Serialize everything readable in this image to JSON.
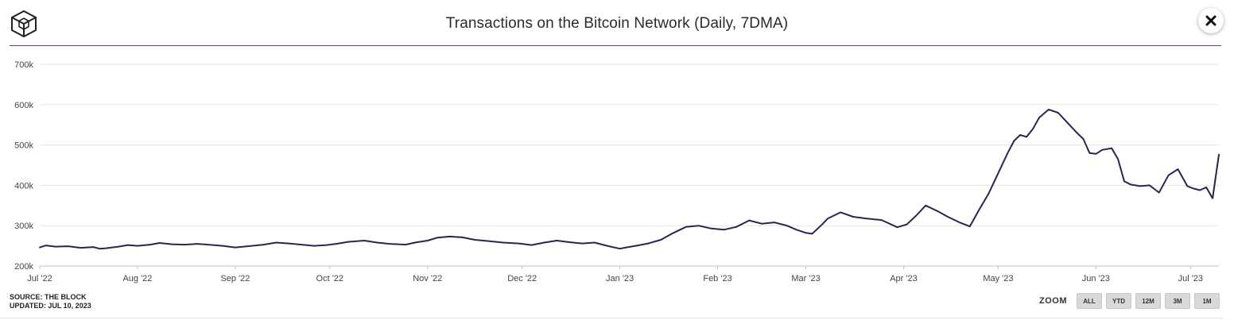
{
  "header": {
    "title": "Transactions on the Bitcoin Network (Daily, 7DMA)",
    "logo_icon": "cube-logo-icon",
    "close_icon": "close-icon"
  },
  "footer": {
    "source": "SOURCE: THE BLOCK",
    "updated": "UPDATED: JUL 10, 2023"
  },
  "zoom": {
    "label": "ZOOM",
    "buttons": [
      "ALL",
      "YTD",
      "12M",
      "3M",
      "1M"
    ]
  },
  "colors": {
    "line": "#2a2550",
    "divider": "#8a2d7a",
    "grid": "#e6e6e6"
  },
  "chart_data": {
    "type": "line",
    "title": "Transactions on the Bitcoin Network (Daily, 7DMA)",
    "xlabel": "",
    "ylabel": "",
    "ylim": [
      200000,
      700000
    ],
    "yticks": [
      200000,
      300000,
      400000,
      500000,
      600000,
      700000
    ],
    "ytick_labels": [
      "200k",
      "300k",
      "400k",
      "500k",
      "600k",
      "700k"
    ],
    "xlim": [
      "2022-07-01",
      "2023-07-10"
    ],
    "xticks": [
      "2022-07-01",
      "2022-08-01",
      "2022-09-01",
      "2022-10-01",
      "2022-11-01",
      "2022-12-01",
      "2023-01-01",
      "2023-02-01",
      "2023-03-01",
      "2023-04-01",
      "2023-05-01",
      "2023-06-01",
      "2023-07-01"
    ],
    "xtick_labels": [
      "Jul '22",
      "Aug '22",
      "Sep '22",
      "Oct '22",
      "Nov '22",
      "Dec '22",
      "Jan '23",
      "Feb '23",
      "Mar '23",
      "Apr '23",
      "May '23",
      "Jun '23",
      "Jul '23"
    ],
    "grid": true,
    "legend": "none",
    "series": [
      {
        "x": [
          "2022-07-01",
          "2022-07-03",
          "2022-07-06",
          "2022-07-10",
          "2022-07-14",
          "2022-07-18",
          "2022-07-20",
          "2022-07-22",
          "2022-07-26",
          "2022-07-29",
          "2022-08-01",
          "2022-08-05",
          "2022-08-08",
          "2022-08-12",
          "2022-08-16",
          "2022-08-20",
          "2022-08-25",
          "2022-08-28",
          "2022-09-01",
          "2022-09-05",
          "2022-09-10",
          "2022-09-14",
          "2022-09-18",
          "2022-09-22",
          "2022-09-26",
          "2022-09-30",
          "2022-10-03",
          "2022-10-07",
          "2022-10-12",
          "2022-10-16",
          "2022-10-20",
          "2022-10-25",
          "2022-10-28",
          "2022-11-01",
          "2022-11-04",
          "2022-11-08",
          "2022-11-12",
          "2022-11-16",
          "2022-11-20",
          "2022-11-25",
          "2022-11-30",
          "2022-12-04",
          "2022-12-08",
          "2022-12-12",
          "2022-12-16",
          "2022-12-20",
          "2022-12-24",
          "2022-12-28",
          "2023-01-01",
          "2023-01-03",
          "2023-01-06",
          "2023-01-10",
          "2023-01-14",
          "2023-01-18",
          "2023-01-22",
          "2023-01-26",
          "2023-01-30",
          "2023-02-03",
          "2023-02-07",
          "2023-02-11",
          "2023-02-15",
          "2023-02-19",
          "2023-02-23",
          "2023-02-26",
          "2023-03-01",
          "2023-03-03",
          "2023-03-06",
          "2023-03-08",
          "2023-03-12",
          "2023-03-16",
          "2023-03-20",
          "2023-03-25",
          "2023-03-30",
          "2023-04-02",
          "2023-04-05",
          "2023-04-08",
          "2023-04-12",
          "2023-04-15",
          "2023-04-19",
          "2023-04-22",
          "2023-04-25",
          "2023-04-28",
          "2023-05-01",
          "2023-05-04",
          "2023-05-06",
          "2023-05-08",
          "2023-05-10",
          "2023-05-12",
          "2023-05-14",
          "2023-05-17",
          "2023-05-20",
          "2023-05-23",
          "2023-05-26",
          "2023-05-28",
          "2023-05-30",
          "2023-06-01",
          "2023-06-03",
          "2023-06-06",
          "2023-06-08",
          "2023-06-10",
          "2023-06-12",
          "2023-06-15",
          "2023-06-18",
          "2023-06-21",
          "2023-06-24",
          "2023-06-27",
          "2023-06-30",
          "2023-07-02",
          "2023-07-04",
          "2023-07-06",
          "2023-07-08",
          "2023-07-10"
        ],
        "y": [
          246000,
          251000,
          248000,
          249000,
          245000,
          247000,
          243000,
          244000,
          248000,
          252000,
          250000,
          253000,
          257000,
          254000,
          253000,
          255000,
          252000,
          250000,
          246000,
          249000,
          253000,
          258000,
          256000,
          253000,
          250000,
          252000,
          255000,
          260000,
          263000,
          258000,
          255000,
          253000,
          258000,
          263000,
          270000,
          273000,
          271000,
          265000,
          262000,
          258000,
          256000,
          252000,
          258000,
          263000,
          259000,
          256000,
          258000,
          250000,
          243000,
          246000,
          250000,
          256000,
          265000,
          282000,
          297000,
          300000,
          293000,
          290000,
          297000,
          313000,
          305000,
          308000,
          300000,
          290000,
          282000,
          280000,
          302000,
          318000,
          333000,
          322000,
          318000,
          314000,
          296000,
          303000,
          325000,
          350000,
          335000,
          322000,
          307000,
          298000,
          340000,
          380000,
          430000,
          480000,
          510000,
          525000,
          520000,
          540000,
          568000,
          588000,
          580000,
          555000,
          530000,
          515000,
          480000,
          478000,
          488000,
          492000,
          465000,
          410000,
          402000,
          398000,
          400000,
          382000,
          425000,
          440000,
          398000,
          392000,
          388000,
          395000,
          368000,
          476000
        ]
      }
    ]
  }
}
